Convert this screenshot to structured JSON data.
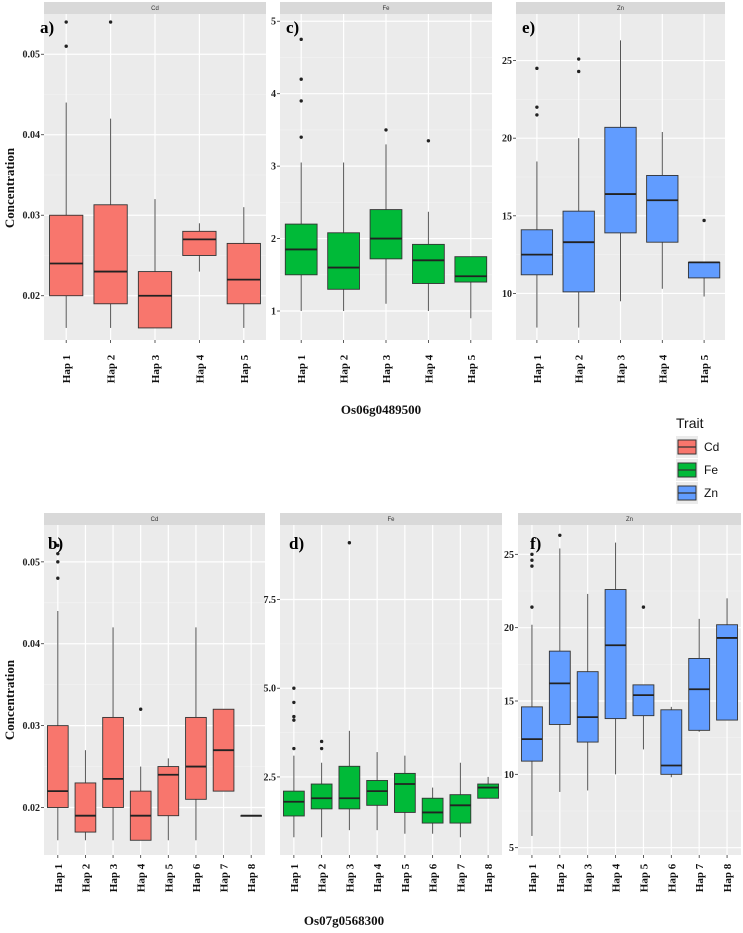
{
  "chart_data": [
    {
      "id": "a",
      "type": "boxplot",
      "panel_label": "a)",
      "strip": "Cd",
      "trait": "Cd",
      "ylabel": "Concentration",
      "xlabel": "Os06g0489500",
      "ylim": [
        0.0145,
        0.055
      ],
      "yticks": [
        0.02,
        0.03,
        0.04,
        0.05
      ],
      "ytick_labels": [
        "0.02",
        "0.03",
        "0.04",
        "0.05"
      ],
      "categories": [
        "Hap 1",
        "Hap 2",
        "Hap 3",
        "Hap 4",
        "Hap 5"
      ],
      "boxes": [
        {
          "min": 0.016,
          "q1": 0.02,
          "median": 0.024,
          "q3": 0.03,
          "max": 0.044,
          "outliers": [
            0.051,
            0.054
          ]
        },
        {
          "min": 0.016,
          "q1": 0.019,
          "median": 0.023,
          "q3": 0.0313,
          "max": 0.042,
          "outliers": [
            0.054
          ]
        },
        {
          "min": 0.016,
          "q1": 0.016,
          "median": 0.02,
          "q3": 0.023,
          "max": 0.032,
          "outliers": []
        },
        {
          "min": 0.023,
          "q1": 0.025,
          "median": 0.027,
          "q3": 0.028,
          "max": 0.029,
          "outliers": []
        },
        {
          "min": 0.016,
          "q1": 0.019,
          "median": 0.022,
          "q3": 0.0265,
          "max": 0.031,
          "outliers": []
        }
      ]
    },
    {
      "id": "c",
      "type": "boxplot",
      "panel_label": "c)",
      "strip": "Fe",
      "trait": "Fe",
      "ylim": [
        0.6,
        5.1
      ],
      "yticks": [
        1,
        2,
        3,
        4,
        5
      ],
      "ytick_labels": [
        "1",
        "2",
        "3",
        "4",
        "5"
      ],
      "categories": [
        "Hap 1",
        "Hap 2",
        "Hap 3",
        "Hap 4",
        "Hap 5"
      ],
      "boxes": [
        {
          "min": 1.0,
          "q1": 1.5,
          "median": 1.85,
          "q3": 2.2,
          "max": 3.05,
          "outliers": [
            3.4,
            3.9,
            4.2,
            4.75
          ]
        },
        {
          "min": 1.0,
          "q1": 1.3,
          "median": 1.6,
          "q3": 2.08,
          "max": 3.05,
          "outliers": []
        },
        {
          "min": 1.1,
          "q1": 1.72,
          "median": 2.0,
          "q3": 2.4,
          "max": 3.3,
          "outliers": [
            3.5
          ]
        },
        {
          "min": 1.0,
          "q1": 1.38,
          "median": 1.7,
          "q3": 1.92,
          "max": 2.37,
          "outliers": [
            3.35
          ]
        },
        {
          "min": 0.9,
          "q1": 1.4,
          "median": 1.48,
          "q3": 1.75,
          "max": 1.75,
          "outliers": []
        }
      ]
    },
    {
      "id": "e",
      "type": "boxplot",
      "panel_label": "e)",
      "strip": "Zn",
      "trait": "Zn",
      "ylim": [
        7,
        28
      ],
      "yticks": [
        10,
        15,
        20,
        25
      ],
      "ytick_labels": [
        "10",
        "15",
        "20",
        "25"
      ],
      "categories": [
        "Hap 1",
        "Hap 2",
        "Hap 3",
        "Hap 4",
        "Hap 5"
      ],
      "boxes": [
        {
          "min": 7.8,
          "q1": 11.2,
          "median": 12.5,
          "q3": 14.1,
          "max": 18.5,
          "outliers": [
            21.5,
            22.0,
            24.5
          ]
        },
        {
          "min": 7.8,
          "q1": 10.1,
          "median": 13.3,
          "q3": 15.3,
          "max": 20.0,
          "outliers": [
            24.3,
            25.1
          ]
        },
        {
          "min": 9.5,
          "q1": 13.9,
          "median": 16.4,
          "q3": 20.7,
          "max": 26.3,
          "outliers": []
        },
        {
          "min": 10.3,
          "q1": 13.3,
          "median": 16.0,
          "q3": 17.6,
          "max": 20.4,
          "outliers": []
        },
        {
          "min": 9.8,
          "q1": 11.0,
          "median": 12.0,
          "q3": 12.0,
          "max": 12.0,
          "outliers": [
            14.7
          ]
        }
      ]
    },
    {
      "id": "b",
      "type": "boxplot",
      "panel_label": "b)",
      "strip": "Cd",
      "trait": "Cd",
      "ylabel": "Concentration",
      "xlabel": "Os07g0568300",
      "ylim": [
        0.0142,
        0.0545
      ],
      "yticks": [
        0.02,
        0.03,
        0.04,
        0.05
      ],
      "ytick_labels": [
        "0.02",
        "0.03",
        "0.04",
        "0.05"
      ],
      "categories": [
        "Hap 1",
        "Hap 2",
        "Hap 3",
        "Hap 4",
        "Hap 5",
        "Hap 6",
        "Hap 7",
        "Hap 8"
      ],
      "boxes": [
        {
          "min": 0.016,
          "q1": 0.02,
          "median": 0.022,
          "q3": 0.03,
          "max": 0.044,
          "outliers": [
            0.048,
            0.05,
            0.051,
            0.052
          ]
        },
        {
          "min": 0.016,
          "q1": 0.017,
          "median": 0.019,
          "q3": 0.023,
          "max": 0.027,
          "outliers": []
        },
        {
          "min": 0.016,
          "q1": 0.02,
          "median": 0.0235,
          "q3": 0.031,
          "max": 0.042,
          "outliers": []
        },
        {
          "min": 0.016,
          "q1": 0.016,
          "median": 0.019,
          "q3": 0.022,
          "max": 0.025,
          "outliers": [
            0.032
          ]
        },
        {
          "min": 0.016,
          "q1": 0.019,
          "median": 0.024,
          "q3": 0.025,
          "max": 0.026,
          "outliers": []
        },
        {
          "min": 0.016,
          "q1": 0.021,
          "median": 0.025,
          "q3": 0.031,
          "max": 0.042,
          "outliers": []
        },
        {
          "min": 0.022,
          "q1": 0.022,
          "median": 0.027,
          "q3": 0.032,
          "max": 0.032,
          "outliers": []
        },
        {
          "min": 0.019,
          "q1": 0.019,
          "median": 0.019,
          "q3": 0.019,
          "max": 0.019,
          "outliers": []
        }
      ]
    },
    {
      "id": "d",
      "type": "boxplot",
      "panel_label": "d)",
      "strip": "Fe",
      "trait": "Fe",
      "ylim": [
        0.3,
        9.6
      ],
      "yticks": [
        2.5,
        5.0,
        7.5
      ],
      "ytick_labels": [
        "2.5",
        "5.0",
        "7.5"
      ],
      "categories": [
        "Hap 1",
        "Hap 2",
        "Hap 3",
        "Hap 4",
        "Hap 5",
        "Hap 6",
        "Hap 7",
        "Hap 8"
      ],
      "boxes": [
        {
          "min": 0.8,
          "q1": 1.4,
          "median": 1.8,
          "q3": 2.1,
          "max": 3.1,
          "outliers": [
            3.3,
            4.1,
            4.2,
            4.6,
            5.0
          ]
        },
        {
          "min": 0.8,
          "q1": 1.6,
          "median": 1.9,
          "q3": 2.3,
          "max": 2.9,
          "outliers": [
            3.3,
            3.5
          ]
        },
        {
          "min": 1.0,
          "q1": 1.6,
          "median": 1.9,
          "q3": 2.8,
          "max": 3.8,
          "outliers": [
            9.1
          ]
        },
        {
          "min": 1.0,
          "q1": 1.7,
          "median": 2.1,
          "q3": 2.4,
          "max": 3.2,
          "outliers": []
        },
        {
          "min": 0.9,
          "q1": 1.5,
          "median": 2.3,
          "q3": 2.6,
          "max": 3.1,
          "outliers": []
        },
        {
          "min": 0.9,
          "q1": 1.2,
          "median": 1.5,
          "q3": 1.9,
          "max": 2.2,
          "outliers": []
        },
        {
          "min": 0.8,
          "q1": 1.2,
          "median": 1.7,
          "q3": 2.0,
          "max": 2.9,
          "outliers": []
        },
        {
          "min": 1.9,
          "q1": 1.9,
          "median": 2.2,
          "q3": 2.3,
          "max": 2.5,
          "outliers": []
        }
      ]
    },
    {
      "id": "f",
      "type": "boxplot",
      "panel_label": "f)",
      "strip": "Zn",
      "trait": "Zn",
      "ylim": [
        4.5,
        27
      ],
      "yticks": [
        5,
        10,
        15,
        20,
        25
      ],
      "ytick_labels": [
        "5",
        "10",
        "15",
        "20",
        "25"
      ],
      "categories": [
        "Hap 1",
        "Hap 2",
        "Hap 3",
        "Hap 4",
        "Hap 5",
        "Hap 6",
        "Hap 7",
        "Hap 8"
      ],
      "boxes": [
        {
          "min": 5.8,
          "q1": 10.9,
          "median": 12.4,
          "q3": 14.6,
          "max": 20.2,
          "outliers": [
            21.4,
            24.2,
            24.6,
            25.0
          ]
        },
        {
          "min": 8.8,
          "q1": 13.4,
          "median": 16.2,
          "q3": 18.4,
          "max": 25.4,
          "outliers": [
            26.3
          ]
        },
        {
          "min": 8.9,
          "q1": 12.2,
          "median": 13.9,
          "q3": 17.0,
          "max": 22.3,
          "outliers": []
        },
        {
          "min": 10.0,
          "q1": 13.8,
          "median": 18.8,
          "q3": 22.6,
          "max": 25.8,
          "outliers": []
        },
        {
          "min": 11.7,
          "q1": 14.0,
          "median": 15.4,
          "q3": 16.1,
          "max": 16.1,
          "outliers": [
            21.4
          ]
        },
        {
          "min": 9.8,
          "q1": 10.0,
          "median": 10.6,
          "q3": 14.4,
          "max": 14.6,
          "outliers": []
        },
        {
          "min": 12.9,
          "q1": 13.0,
          "median": 15.8,
          "q3": 17.9,
          "max": 20.6,
          "outliers": []
        },
        {
          "min": 13.7,
          "q1": 13.7,
          "median": 19.3,
          "q3": 20.2,
          "max": 22.0,
          "outliers": []
        }
      ]
    }
  ],
  "legend": {
    "title": "Trait",
    "items": [
      {
        "label": "Cd",
        "color": "#F8766D"
      },
      {
        "label": "Fe",
        "color": "#00BA38"
      },
      {
        "label": "Zn",
        "color": "#619CFF"
      }
    ]
  },
  "colors": {
    "Cd": "#F8766D",
    "Fe": "#00BA38",
    "Zn": "#619CFF",
    "panel_bg": "#EBEBEB",
    "strip_bg": "#D9D9D9",
    "grid_major": "#FFFFFF",
    "grid_minor": "#F4F4F4",
    "box_line": "#333333",
    "whisker": "#555555"
  }
}
